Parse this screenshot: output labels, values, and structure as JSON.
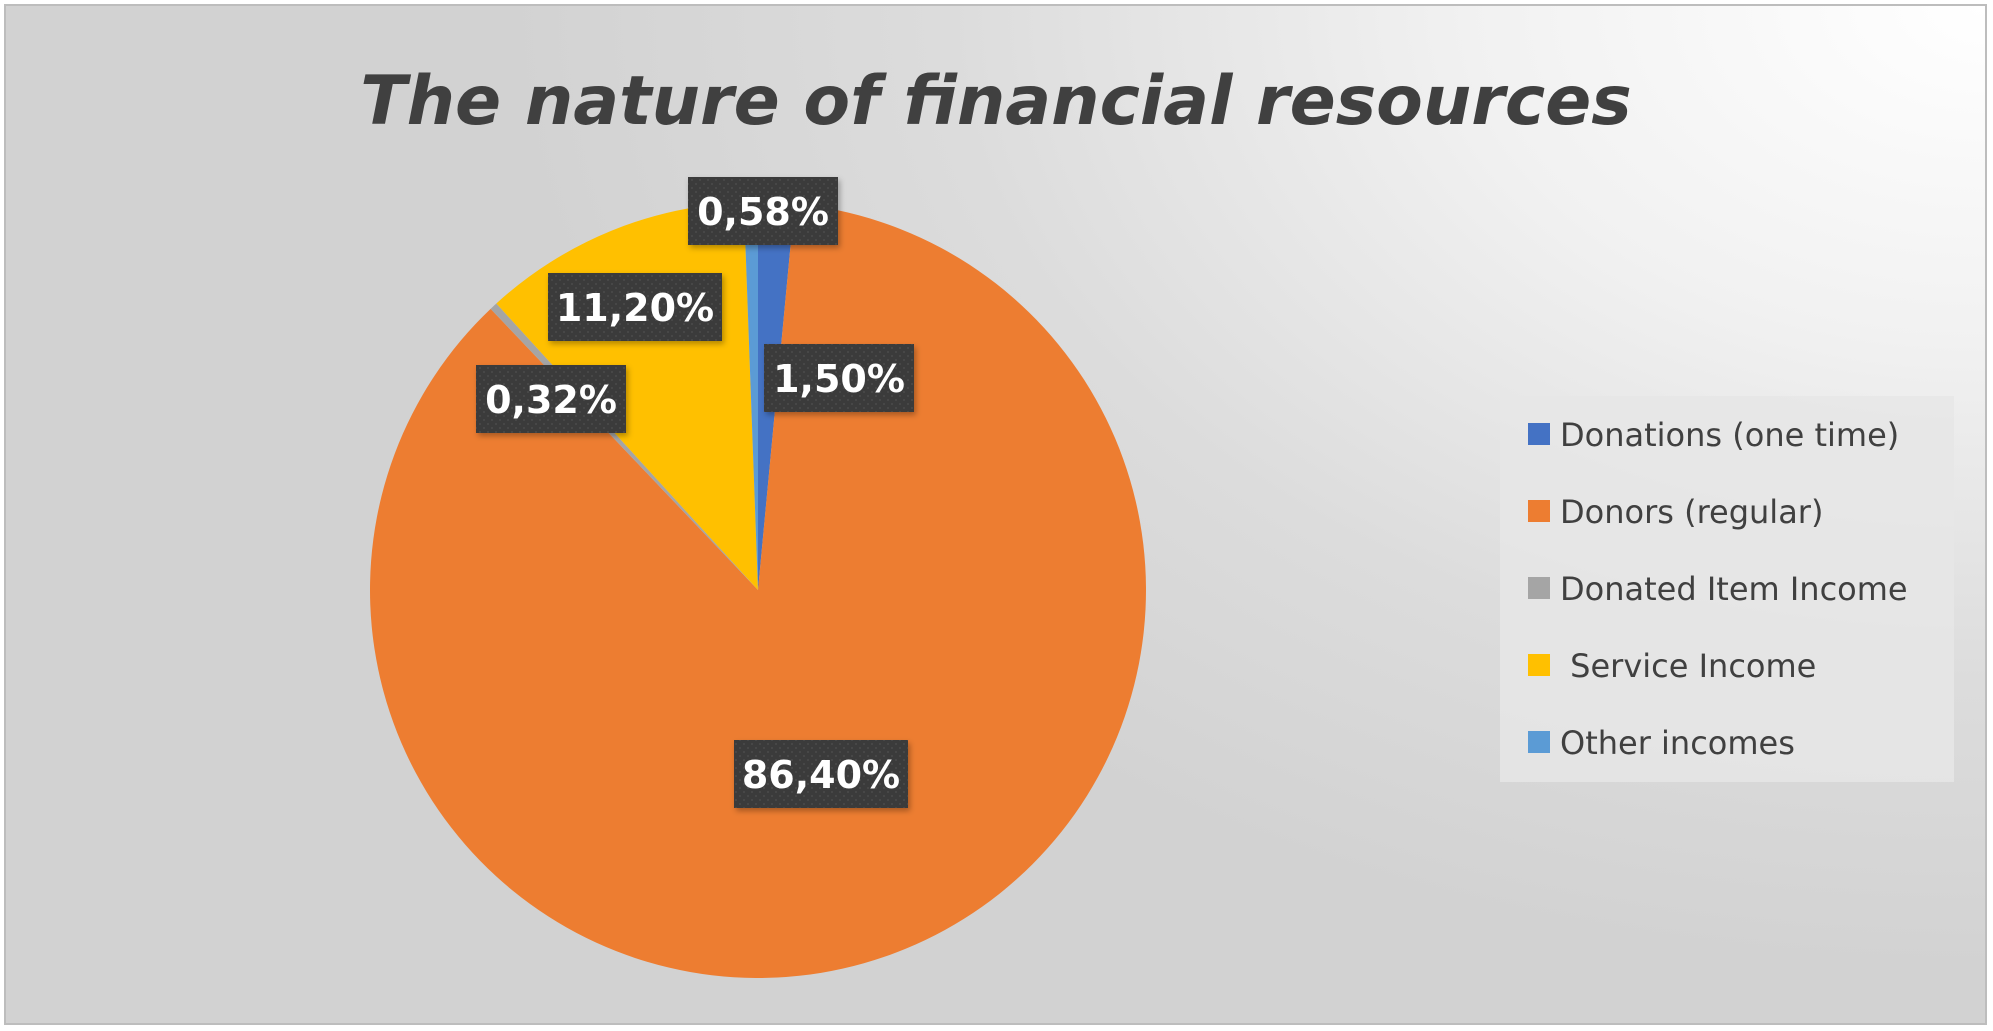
{
  "chart_data": {
    "type": "pie",
    "title": "The nature of financial resources",
    "series": [
      {
        "name": "Donations (one time)",
        "value": 1.5,
        "label": "1,50%",
        "color": "#4472C4"
      },
      {
        "name": "Donors (regular)",
        "value": 86.4,
        "label": "86,40%",
        "color": "#ED7D31"
      },
      {
        "name": "Donated Item Income",
        "value": 0.32,
        "label": "0,32%",
        "color": "#A5A5A5"
      },
      {
        "name": " Service Income",
        "value": 11.2,
        "label": "11,20%",
        "color": "#FFC000"
      },
      {
        "name": "Other incomes",
        "value": 0.58,
        "label": "0,58%",
        "color": "#5B9BD5"
      }
    ],
    "legend": "right",
    "data_label_style": "dark boxes with white bold text"
  }
}
